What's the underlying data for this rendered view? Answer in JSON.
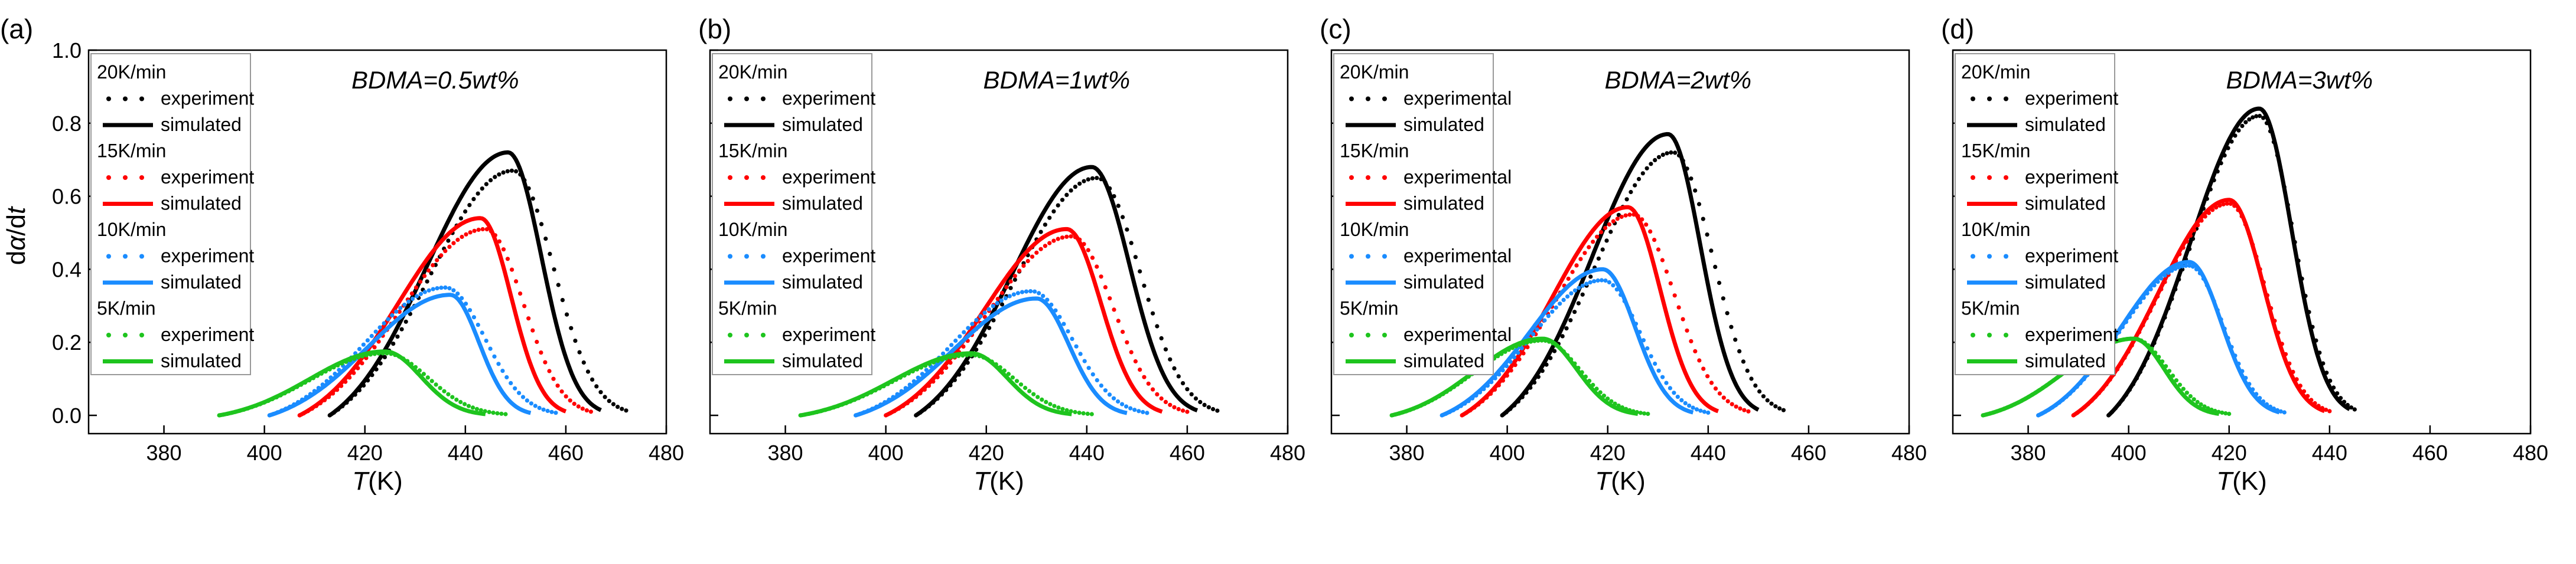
{
  "figure": {
    "ylabel_main": "d",
    "ylabel_alpha": "α",
    "ylabel_rest": "/d",
    "ylabel_t": "t",
    "xlabel_T": "T",
    "xlabel_unit": "(K)"
  },
  "chart_data": [
    {
      "type": "line",
      "panel_label": "(a)",
      "title": "BDMA=0.5wt%",
      "xlim": [
        365,
        480
      ],
      "ylim": [
        -0.05,
        1.0
      ],
      "xticks": [
        380,
        400,
        420,
        440,
        460,
        480
      ],
      "yticks": [
        0.0,
        0.2,
        0.4,
        0.6,
        0.8,
        1.0
      ],
      "series": [
        {
          "rate": "20K/min",
          "color": "#000000",
          "exp_label": "experiment",
          "sim_label": "simulated",
          "exp": {
            "start": 413,
            "peak": 449.5,
            "peak_val": 0.67,
            "end": 472
          },
          "sim": {
            "start": 413,
            "peak": 448.5,
            "peak_val": 0.72,
            "end": 467
          }
        },
        {
          "rate": "15K/min",
          "color": "#ff0000",
          "exp_label": "experiment",
          "sim_label": "simulated",
          "exp": {
            "start": 407,
            "peak": 444,
            "peak_val": 0.51,
            "end": 465
          },
          "sim": {
            "start": 407,
            "peak": 443,
            "peak_val": 0.54,
            "end": 460
          }
        },
        {
          "rate": "10K/min",
          "color": "#1a8cff",
          "exp_label": "experiment",
          "sim_label": "simulated",
          "exp": {
            "start": 401,
            "peak": 436,
            "peak_val": 0.35,
            "end": 458
          },
          "sim": {
            "start": 401,
            "peak": 437,
            "peak_val": 0.33,
            "end": 453
          }
        },
        {
          "rate": "5K/min",
          "color": "#1ec41e",
          "exp_label": "experiment",
          "sim_label": "simulated",
          "exp": {
            "start": 391,
            "peak": 424,
            "peak_val": 0.17,
            "end": 448
          },
          "sim": {
            "start": 391,
            "peak": 424,
            "peak_val": 0.175,
            "end": 444
          }
        }
      ]
    },
    {
      "type": "line",
      "panel_label": "(b)",
      "title": "BDMA=1wt%",
      "xlim": [
        365,
        480
      ],
      "ylim": [
        -0.05,
        1.0
      ],
      "xticks": [
        380,
        400,
        420,
        440,
        460,
        480
      ],
      "yticks": [
        0.0,
        0.2,
        0.4,
        0.6,
        0.8,
        1.0
      ],
      "series": [
        {
          "rate": "20K/min",
          "color": "#000000",
          "exp_label": "experiment",
          "sim_label": "simulated",
          "exp": {
            "start": 406,
            "peak": 442,
            "peak_val": 0.65,
            "end": 466
          },
          "sim": {
            "start": 406,
            "peak": 441,
            "peak_val": 0.68,
            "end": 462
          }
        },
        {
          "rate": "15K/min",
          "color": "#ff0000",
          "exp_label": "experiment",
          "sim_label": "simulated",
          "exp": {
            "start": 400,
            "peak": 437,
            "peak_val": 0.49,
            "end": 460
          },
          "sim": {
            "start": 400,
            "peak": 436,
            "peak_val": 0.51,
            "end": 455
          }
        },
        {
          "rate": "10K/min",
          "color": "#1a8cff",
          "exp_label": "experiment",
          "sim_label": "simulated",
          "exp": {
            "start": 394,
            "peak": 429,
            "peak_val": 0.34,
            "end": 452
          },
          "sim": {
            "start": 394,
            "peak": 430,
            "peak_val": 0.32,
            "end": 448
          }
        },
        {
          "rate": "5K/min",
          "color": "#1ec41e",
          "exp_label": "experiment",
          "sim_label": "simulated",
          "exp": {
            "start": 383,
            "peak": 417,
            "peak_val": 0.165,
            "end": 441
          },
          "sim": {
            "start": 383,
            "peak": 417,
            "peak_val": 0.17,
            "end": 437
          }
        }
      ]
    },
    {
      "type": "line",
      "panel_label": "(c)",
      "title": "BDMA=2wt%",
      "xlim": [
        365,
        480
      ],
      "ylim": [
        -0.05,
        1.0
      ],
      "xticks": [
        380,
        400,
        420,
        440,
        460,
        480
      ],
      "yticks": [
        0.0,
        0.2,
        0.4,
        0.6,
        0.8,
        1.0
      ],
      "series": [
        {
          "rate": "20K/min",
          "color": "#000000",
          "exp_label": "experimental",
          "sim_label": "simulated",
          "exp": {
            "start": 399,
            "peak": 433,
            "peak_val": 0.72,
            "end": 455
          },
          "sim": {
            "start": 399,
            "peak": 432,
            "peak_val": 0.77,
            "end": 450
          }
        },
        {
          "rate": "15K/min",
          "color": "#ff0000",
          "exp_label": "experimental",
          "sim_label": "simulated",
          "exp": {
            "start": 391,
            "peak": 425,
            "peak_val": 0.55,
            "end": 448
          },
          "sim": {
            "start": 391,
            "peak": 424,
            "peak_val": 0.57,
            "end": 442
          }
        },
        {
          "rate": "10K/min",
          "color": "#1a8cff",
          "exp_label": "experimental",
          "sim_label": "simulated",
          "exp": {
            "start": 387,
            "peak": 419,
            "peak_val": 0.37,
            "end": 440
          },
          "sim": {
            "start": 387,
            "peak": 419,
            "peak_val": 0.4,
            "end": 437
          }
        },
        {
          "rate": "5K/min",
          "color": "#1ec41e",
          "exp_label": "experimental",
          "sim_label": "simulated",
          "exp": {
            "start": 377,
            "peak": 407,
            "peak_val": 0.205,
            "end": 428
          },
          "sim": {
            "start": 377,
            "peak": 407,
            "peak_val": 0.21,
            "end": 426
          }
        }
      ]
    },
    {
      "type": "line",
      "panel_label": "(d)",
      "title": "BDMA=3wt%",
      "xlim": [
        365,
        480
      ],
      "ylim": [
        -0.05,
        1.0
      ],
      "xticks": [
        380,
        400,
        420,
        440,
        460,
        480
      ],
      "yticks": [
        0.0,
        0.2,
        0.4,
        0.6,
        0.8,
        1.0
      ],
      "series": [
        {
          "rate": "20K/min",
          "color": "#000000",
          "exp_label": "experiment",
          "sim_label": "simulated",
          "exp": {
            "start": 396,
            "peak": 426,
            "peak_val": 0.82,
            "end": 445
          },
          "sim": {
            "start": 396,
            "peak": 426,
            "peak_val": 0.84,
            "end": 444
          }
        },
        {
          "rate": "15K/min",
          "color": "#ff0000",
          "exp_label": "experiment",
          "sim_label": "simulated",
          "exp": {
            "start": 389,
            "peak": 420,
            "peak_val": 0.58,
            "end": 440
          },
          "sim": {
            "start": 389,
            "peak": 420,
            "peak_val": 0.59,
            "end": 439
          }
        },
        {
          "rate": "10K/min",
          "color": "#1a8cff",
          "exp_label": "experiment",
          "sim_label": "simulated",
          "exp": {
            "start": 382,
            "peak": 412,
            "peak_val": 0.41,
            "end": 431
          },
          "sim": {
            "start": 382,
            "peak": 412,
            "peak_val": 0.42,
            "end": 430
          }
        },
        {
          "rate": "5K/min",
          "color": "#1ec41e",
          "exp_label": "experiment",
          "sim_label": "simulated",
          "exp": {
            "start": 371,
            "peak": 401,
            "peak_val": 0.21,
            "end": 420
          },
          "sim": {
            "start": 371,
            "peak": 401,
            "peak_val": 0.21,
            "end": 418
          }
        }
      ]
    }
  ]
}
